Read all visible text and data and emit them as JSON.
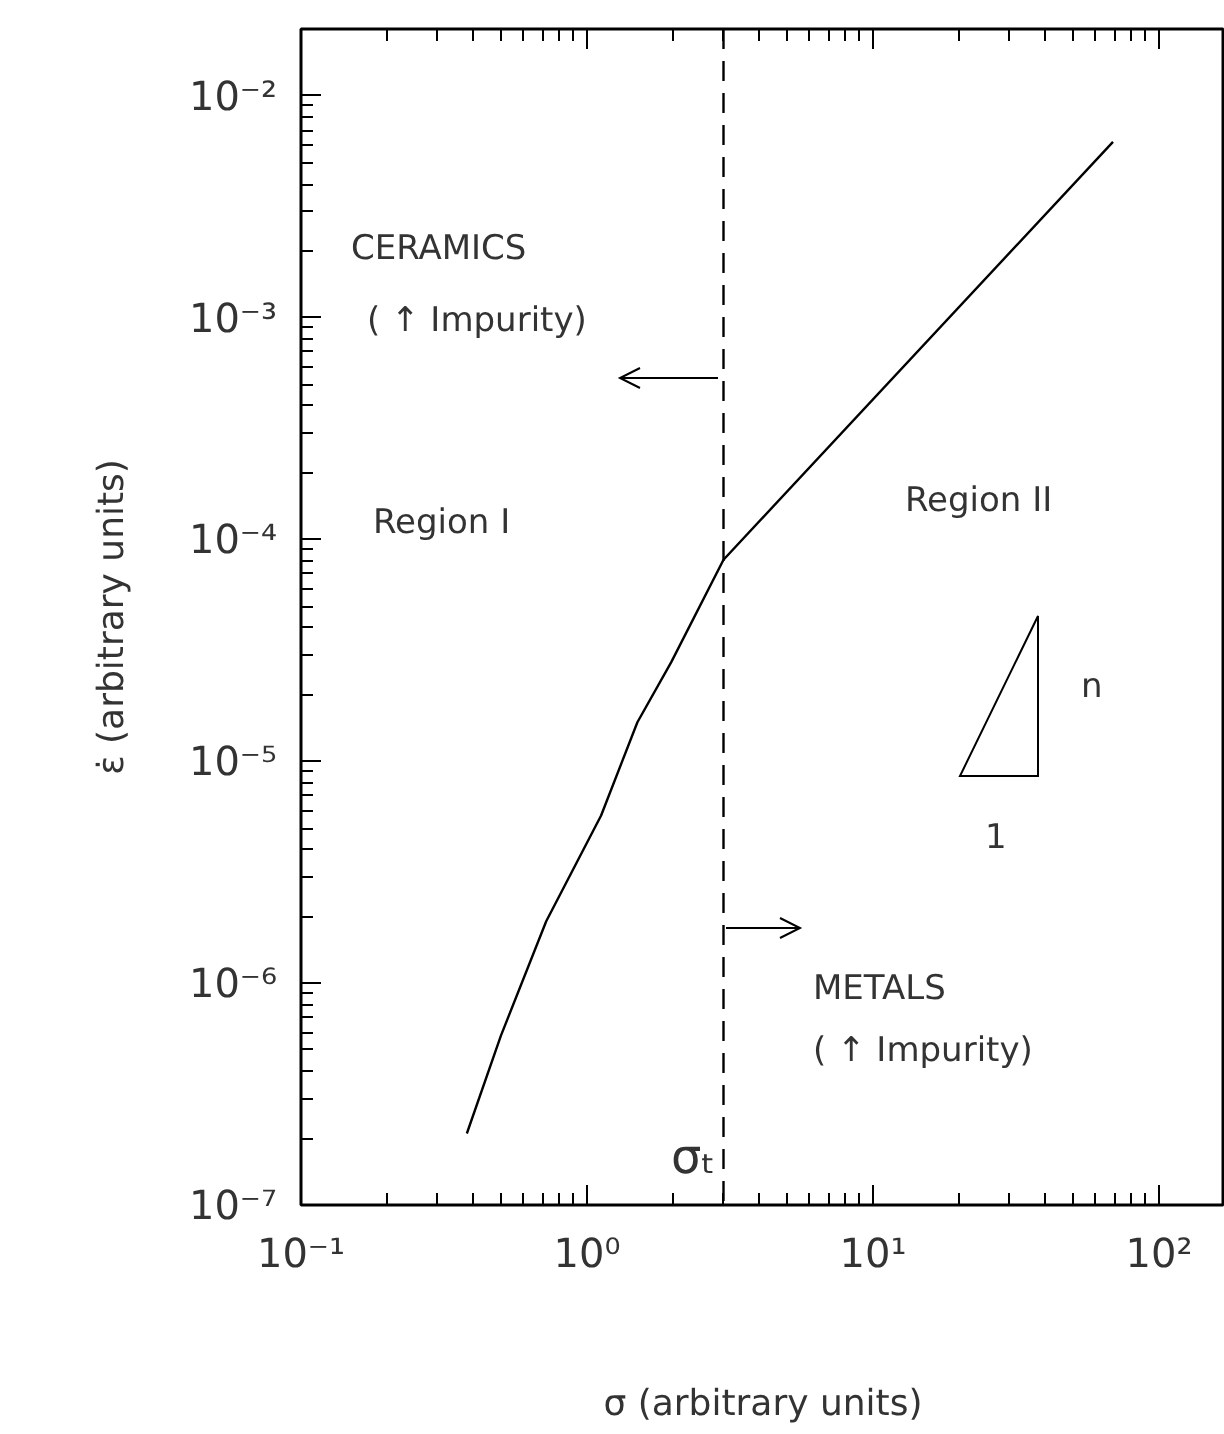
{
  "chart_data": {
    "type": "line",
    "xlabel": "σ (arbitrary units)",
    "ylabel": "ε̇ (arbitrary units)",
    "log": "xy",
    "grid": false,
    "marker": "none",
    "line_style": "solid",
    "xlim": [
      0.1,
      170
    ],
    "ylim": [
      1e-07,
      0.02
    ],
    "xticks": [
      {
        "value": 0.1,
        "label": "10⁻¹"
      },
      {
        "value": 1,
        "label": "10⁰"
      },
      {
        "value": 10,
        "label": "10¹"
      },
      {
        "value": 100,
        "label": "10²"
      }
    ],
    "yticks": [
      {
        "value": 1e-07,
        "label": "10⁻⁷"
      },
      {
        "value": 1e-06,
        "label": "10⁻⁶"
      },
      {
        "value": 1e-05,
        "label": "10⁻⁵"
      },
      {
        "value": 0.0001,
        "label": "10⁻⁴"
      },
      {
        "value": 0.001,
        "label": "10⁻³"
      },
      {
        "value": 0.01,
        "label": "10⁻²"
      }
    ],
    "x": [
      0.38,
      0.5,
      0.72,
      1.12,
      1.5,
      1.97,
      3.0,
      69
    ],
    "series": [
      {
        "color": "#000000",
        "values": [
          2.1e-07,
          5.8e-07,
          1.9e-06,
          5.7e-06,
          1.5e-05,
          2.8e-05,
          8.1e-05,
          0.0062
        ]
      }
    ],
    "ref_lines": [
      {
        "axis": "x",
        "value": 3.0,
        "label": "σₜ",
        "line_style": "dashed",
        "color": "#000000"
      }
    ],
    "annotations": [
      "CERAMICS",
      "( ↑ Impurity)",
      "Region I",
      "Region II",
      "METALS",
      "( ↑ Impurity)",
      "n",
      "1"
    ]
  }
}
